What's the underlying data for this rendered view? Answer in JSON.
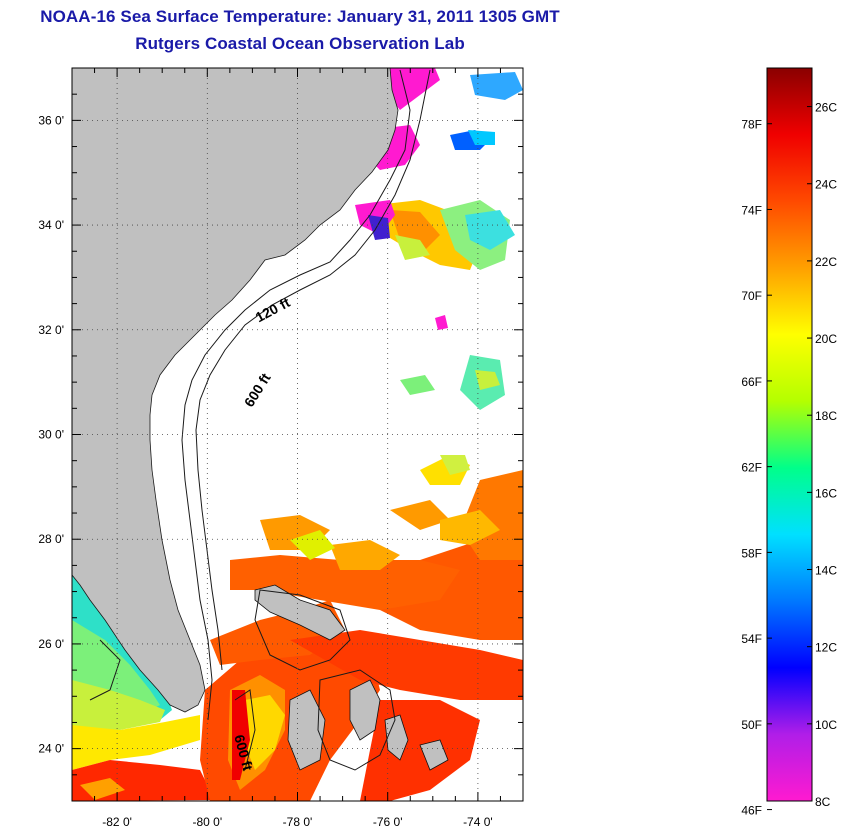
{
  "header": {
    "title": "NOAA-16 Sea Surface Temperature:  January 31, 2011 1305 GMT",
    "subtitle": "Rutgers Coastal Ocean Observation Lab"
  },
  "map": {
    "lon_range": [
      -83,
      -73
    ],
    "lat_range": [
      23,
      37
    ],
    "lon_ticks": [
      -82,
      -80,
      -78,
      -76,
      -74
    ],
    "lon_tick_labels": [
      "-82 0'",
      "-80 0'",
      "-78 0'",
      "-76 0'",
      "-74 0'"
    ],
    "lat_ticks": [
      24,
      26,
      28,
      30,
      32,
      34,
      36
    ],
    "lat_tick_labels": [
      "24 0'",
      "26 0'",
      "28 0'",
      "30 0'",
      "32 0'",
      "34 0'",
      "36 0'"
    ],
    "grid": "dotted",
    "land_color": "#c0c0c0",
    "no_data_color": "#ffffff",
    "contour_labels": [
      {
        "text": "120 ft",
        "lon": -78.5,
        "lat": 32.3
      },
      {
        "text": "600 ft",
        "lon": -78.8,
        "lat": 30.8
      },
      {
        "text": "600 ft",
        "lon": -79.3,
        "lat": 23.9
      }
    ]
  },
  "colorbar": {
    "fahrenheit_labels": [
      "78F",
      "74F",
      "70F",
      "66F",
      "62F",
      "58F",
      "54F",
      "50F",
      "46F"
    ],
    "celsius_labels": [
      "26C",
      "24C",
      "22C",
      "20C",
      "18C",
      "16C",
      "14C",
      "12C",
      "10C",
      "8C"
    ],
    "range_c": [
      8,
      27
    ],
    "colors": [
      "#ff1ad0",
      "#b01ee8",
      "#0000ff",
      "#0078ff",
      "#00e0ff",
      "#00ff8a",
      "#b4ff00",
      "#ffff00",
      "#ffa000",
      "#ff4a00",
      "#f00000",
      "#8a0000"
    ]
  }
}
